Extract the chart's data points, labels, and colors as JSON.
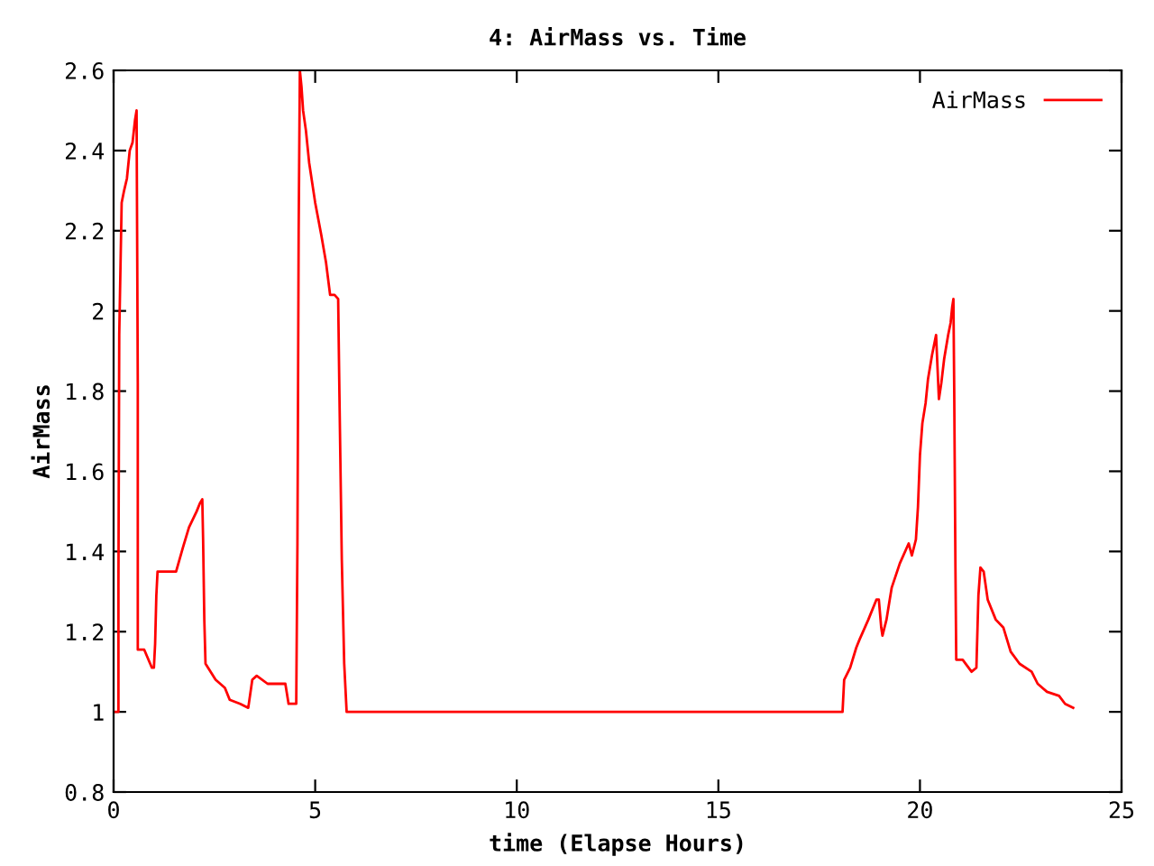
{
  "chart_data": {
    "type": "line",
    "title": "4: AirMass vs. Time",
    "xlabel": "time (Elapse Hours)",
    "ylabel": "AirMass",
    "series": [
      {
        "name": "AirMass",
        "color": "#ff0000",
        "x": [
          0,
          0.12,
          0.12,
          0.14,
          0.2,
          0.26,
          0.33,
          0.4,
          0.47,
          0.53,
          0.57,
          0.6,
          0.6,
          0.76,
          0.95,
          1.0,
          1.03,
          1.06,
          1.09,
          1.43,
          1.55,
          1.72,
          1.87,
          2.06,
          2.14,
          2.2,
          2.22,
          2.25,
          2.28,
          2.53,
          2.76,
          2.88,
          3.14,
          3.34,
          3.44,
          3.55,
          3.82,
          4.26,
          4.34,
          4.45,
          4.53,
          4.56,
          4.59,
          4.62,
          4.66,
          4.7,
          4.77,
          4.85,
          5.0,
          5.15,
          5.27,
          5.37,
          5.48,
          5.57,
          5.6,
          5.66,
          5.72,
          5.78,
          18.08,
          18.12,
          18.27,
          18.42,
          18.5,
          18.72,
          18.92,
          18.98,
          19.04,
          19.07,
          19.17,
          19.25,
          19.3,
          19.5,
          19.72,
          19.8,
          19.9,
          19.95,
          20.0,
          20.06,
          20.14,
          20.2,
          20.3,
          20.4,
          20.47,
          20.53,
          20.6,
          20.7,
          20.76,
          20.8,
          20.83,
          20.85,
          20.88,
          20.9,
          21.06,
          21.28,
          21.4,
          21.45,
          21.5,
          21.58,
          21.68,
          21.88,
          22.07,
          22.25,
          22.47,
          22.77,
          22.92,
          23.15,
          23.45,
          23.6,
          23.8
        ],
        "values": [
          1.0,
          1.0,
          1.31,
          1.94,
          2.27,
          2.3,
          2.33,
          2.4,
          2.42,
          2.475,
          2.5,
          1.82,
          1.155,
          1.155,
          1.11,
          1.11,
          1.17,
          1.29,
          1.35,
          1.35,
          1.35,
          1.41,
          1.46,
          1.5,
          1.52,
          1.53,
          1.43,
          1.23,
          1.12,
          1.08,
          1.06,
          1.03,
          1.02,
          1.01,
          1.08,
          1.09,
          1.07,
          1.07,
          1.02,
          1.02,
          1.02,
          1.42,
          2.2,
          2.6,
          2.56,
          2.5,
          2.45,
          2.37,
          2.27,
          2.19,
          2.12,
          2.04,
          2.04,
          2.03,
          1.8,
          1.38,
          1.12,
          1.0,
          1.0,
          1.08,
          1.11,
          1.16,
          1.18,
          1.23,
          1.28,
          1.28,
          1.21,
          1.19,
          1.23,
          1.28,
          1.31,
          1.37,
          1.42,
          1.39,
          1.43,
          1.51,
          1.64,
          1.72,
          1.77,
          1.83,
          1.89,
          1.94,
          1.78,
          1.82,
          1.88,
          1.94,
          1.97,
          2.01,
          2.03,
          1.8,
          1.36,
          1.13,
          1.13,
          1.1,
          1.11,
          1.29,
          1.36,
          1.35,
          1.28,
          1.23,
          1.21,
          1.15,
          1.12,
          1.1,
          1.07,
          1.05,
          1.04,
          1.02,
          1.01
        ]
      }
    ],
    "xlim": [
      0,
      25
    ],
    "xticks": [
      0,
      5,
      10,
      15,
      20,
      25
    ],
    "ylim": [
      0.8,
      2.6
    ],
    "yticks": [
      0.8,
      1,
      1.2,
      1.4,
      1.6,
      1.8,
      2,
      2.2,
      2.4,
      2.6
    ],
    "grid": false,
    "legend": "top right",
    "marker": "none",
    "line_style": "solid"
  }
}
